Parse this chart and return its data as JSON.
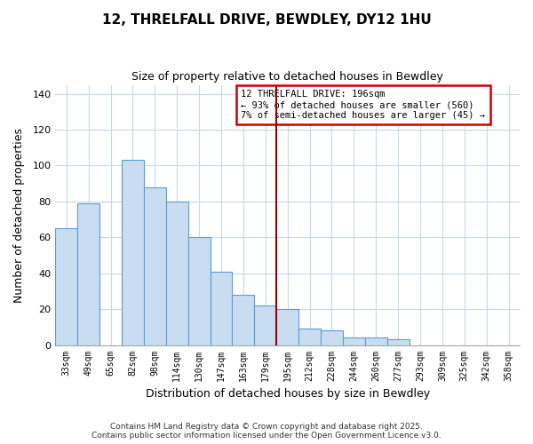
{
  "title": "12, THRELFALL DRIVE, BEWDLEY, DY12 1HU",
  "subtitle": "Size of property relative to detached houses in Bewdley",
  "xlabel": "Distribution of detached houses by size in Bewdley",
  "ylabel": "Number of detached properties",
  "bin_labels": [
    "33sqm",
    "49sqm",
    "65sqm",
    "82sqm",
    "98sqm",
    "114sqm",
    "130sqm",
    "147sqm",
    "163sqm",
    "179sqm",
    "195sqm",
    "212sqm",
    "228sqm",
    "244sqm",
    "260sqm",
    "277sqm",
    "293sqm",
    "309sqm",
    "325sqm",
    "342sqm",
    "358sqm"
  ],
  "bar_heights": [
    65,
    79,
    0,
    103,
    88,
    80,
    60,
    41,
    28,
    22,
    20,
    9,
    8,
    4,
    4,
    3,
    0,
    0,
    0,
    0,
    0
  ],
  "bar_color": "#c8ddf0",
  "bar_edge_color": "#5b9bd5",
  "vline_x_index": 10,
  "vline_color": "#990000",
  "ylim": [
    0,
    145
  ],
  "yticks": [
    0,
    20,
    40,
    60,
    80,
    100,
    120,
    140
  ],
  "legend_title": "12 THRELFALL DRIVE: 196sqm",
  "legend_line1": "← 93% of detached houses are smaller (560)",
  "legend_line2": "7% of semi-detached houses are larger (45) →",
  "legend_box_color": "#cc0000",
  "footer_line1": "Contains HM Land Registry data © Crown copyright and database right 2025.",
  "footer_line2": "Contains public sector information licensed under the Open Government Licence v3.0.",
  "background_color": "#ffffff",
  "grid_color": "#c8d8e8"
}
